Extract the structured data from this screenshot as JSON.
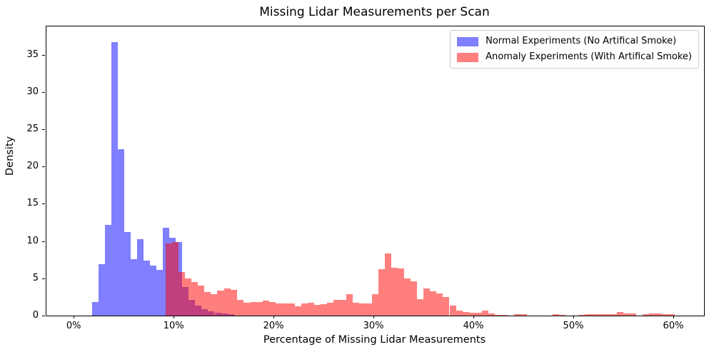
{
  "chart_data": {
    "type": "bar",
    "subtype": "overlaid-histogram",
    "title": "Missing Lidar Measurements per Scan",
    "xlabel": "Percentage of Missing Lidar Measurements",
    "ylabel": "Density",
    "grid": false,
    "legend_position": "upper right",
    "xlim": [
      -2.8,
      63.0
    ],
    "ylim": [
      0,
      38.8
    ],
    "xticks": [
      {
        "value": 0,
        "label": "0%"
      },
      {
        "value": 10,
        "label": "10%"
      },
      {
        "value": 20,
        "label": "20%"
      },
      {
        "value": 30,
        "label": "30%"
      },
      {
        "value": 40,
        "label": "40%"
      },
      {
        "value": 50,
        "label": "50%"
      },
      {
        "value": 60,
        "label": "60%"
      }
    ],
    "yticks": [
      {
        "value": 0,
        "label": "0"
      },
      {
        "value": 5,
        "label": "5"
      },
      {
        "value": 10,
        "label": "10"
      },
      {
        "value": 15,
        "label": "15"
      },
      {
        "value": 20,
        "label": "20"
      },
      {
        "value": 25,
        "label": "25"
      },
      {
        "value": 30,
        "label": "30"
      },
      {
        "value": 35,
        "label": "35"
      }
    ],
    "series": [
      {
        "name": "Normal Experiments (No Artifical Smoke)",
        "color": "#0000ff",
        "alpha": 0.5,
        "bin_start_percent": 1.77,
        "bin_width_percent": 0.645,
        "densities": [
          1.8,
          6.9,
          12.2,
          36.7,
          22.3,
          11.2,
          7.6,
          10.3,
          7.4,
          6.7,
          6.1,
          11.8,
          10.4,
          9.9,
          3.8,
          2.1,
          1.3,
          0.9,
          0.6,
          0.4,
          0.25,
          0.15
        ]
      },
      {
        "name": "Anomaly Experiments (With Artifical Smoke)",
        "color": "#ff0000",
        "alpha": 0.5,
        "bin_start_percent": 9.15,
        "bin_width_percent": 0.645,
        "densities": [
          9.7,
          9.9,
          5.8,
          5.0,
          4.55,
          4.0,
          3.15,
          2.9,
          3.35,
          3.6,
          3.45,
          2.1,
          1.76,
          1.86,
          1.86,
          2.0,
          1.86,
          1.6,
          1.66,
          1.66,
          1.28,
          1.6,
          1.76,
          1.45,
          1.5,
          1.76,
          2.1,
          2.1,
          2.9,
          1.7,
          1.65,
          1.65,
          2.9,
          6.2,
          8.35,
          6.45,
          6.3,
          4.95,
          4.6,
          2.2,
          3.6,
          3.3,
          3.0,
          2.5,
          1.3,
          0.7,
          0.5,
          0.4,
          0.35,
          0.7,
          0.3,
          0.1,
          0.05,
          0,
          0.15,
          0.15,
          0,
          0,
          0,
          0,
          0.15,
          0.1,
          0,
          0,
          0.1,
          0.2,
          0.2,
          0.2,
          0.2,
          0.2,
          0.45,
          0.25,
          0.25,
          0,
          0.2,
          0.3,
          0.25,
          0.2,
          0.2,
          0
        ]
      }
    ]
  }
}
